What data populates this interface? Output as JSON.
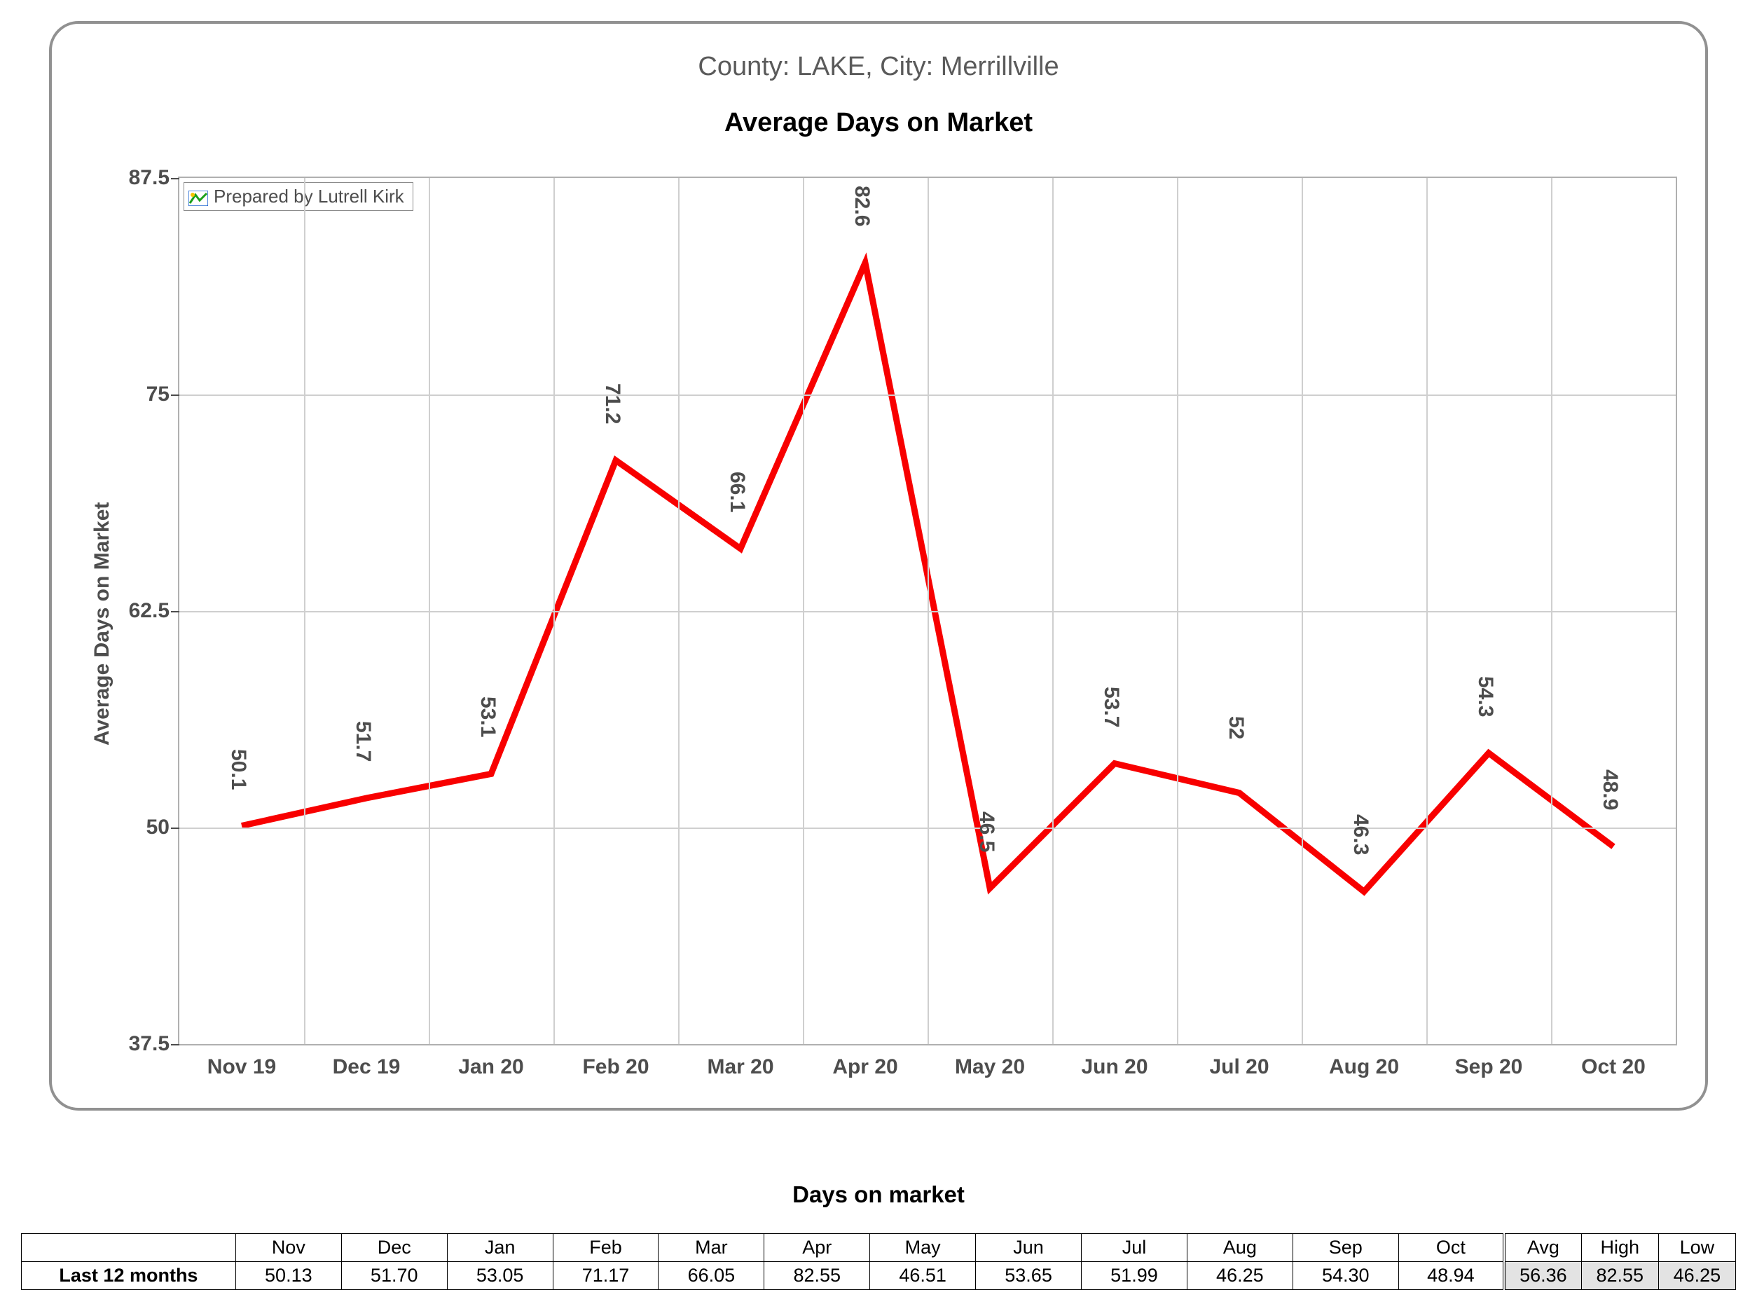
{
  "chart": {
    "type": "line",
    "subtitle": "County: LAKE, City: Merrillville",
    "title": "Average Days on Market",
    "yaxis_title": "Average Days on Market",
    "credit": "Prepared by Lutrell Kirk",
    "ylim": [
      37.5,
      87.5
    ],
    "yticks": [
      37.5,
      50,
      62.5,
      75,
      87.5
    ],
    "ytick_labels": [
      "37.5",
      "50",
      "62.5",
      "75",
      "87.5"
    ],
    "categories": [
      "Nov 19",
      "Dec 19",
      "Jan 20",
      "Feb 20",
      "Mar 20",
      "Apr 20",
      "May 20",
      "Jun 20",
      "Jul 20",
      "Aug 20",
      "Sep 20",
      "Oct 20"
    ],
    "values": [
      50.1,
      51.7,
      53.1,
      71.2,
      66.1,
      82.6,
      46.5,
      53.7,
      52.0,
      46.3,
      54.3,
      48.9
    ],
    "value_labels": [
      "50.1",
      "51.7",
      "53.1",
      "71.2",
      "66.1",
      "82.6",
      "46.5",
      "53.7",
      "52",
      "46.3",
      "54.3",
      "48.9"
    ],
    "line_color": "#f80000",
    "line_width": 9,
    "grid_color": "#cfcfcf",
    "axis_color": "#b0b0b0",
    "text_color": "#4d4d4d",
    "panel_border_color": "#919191",
    "background_color": "#ffffff",
    "title_fontsize": 38,
    "label_fontsize": 30,
    "datalabel_fontsize": 30
  },
  "table": {
    "title": "Days on market",
    "row_label": "Last 12 months",
    "columns": [
      "Nov",
      "Dec",
      "Jan",
      "Feb",
      "Mar",
      "Apr",
      "May",
      "Jun",
      "Jul",
      "Aug",
      "Sep",
      "Oct"
    ],
    "values": [
      "50.13",
      "51.70",
      "53.05",
      "71.17",
      "66.05",
      "82.55",
      "46.51",
      "53.65",
      "51.99",
      "46.25",
      "54.30",
      "48.94"
    ],
    "stats_columns": [
      "Avg",
      "High",
      "Low"
    ],
    "stats_values": [
      "56.36",
      "82.55",
      "46.25"
    ],
    "border_color": "#000000",
    "stat_bg": "#e3e3e3"
  }
}
